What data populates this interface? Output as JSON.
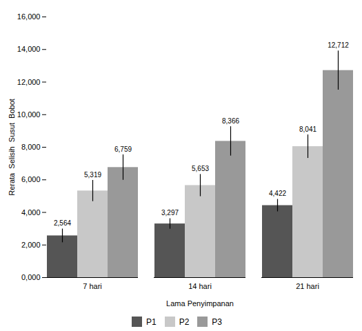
{
  "chart_data": {
    "type": "bar",
    "categories": [
      "7 hari",
      "14 hari",
      "21 hari"
    ],
    "series": [
      {
        "name": "P1",
        "color": "#555555",
        "values": [
          2564,
          3297,
          4422
        ],
        "errors": [
          420,
          320,
          380
        ],
        "value_labels": [
          "2,564",
          "3,297",
          "4,422"
        ]
      },
      {
        "name": "P2",
        "color": "#c8c8c8",
        "values": [
          5319,
          5653,
          8041
        ],
        "errors": [
          650,
          680,
          720
        ],
        "value_labels": [
          "5,319",
          "5,653",
          "8,041"
        ]
      },
      {
        "name": "P3",
        "color": "#999999",
        "values": [
          6759,
          8366,
          12712
        ],
        "errors": [
          780,
          900,
          1200
        ],
        "value_labels": [
          "6,759",
          "8,366",
          "12,712"
        ]
      }
    ],
    "xlabel": "Lama Penyimpanan",
    "ylabel": "Rerata  Selisih  Susut  Bobot",
    "ylim": [
      0,
      16000
    ],
    "yticks": [
      {
        "value": 0,
        "label": "0,000"
      },
      {
        "value": 2000,
        "label": "2,000"
      },
      {
        "value": 4000,
        "label": "4,000"
      },
      {
        "value": 6000,
        "label": "6,000"
      },
      {
        "value": 8000,
        "label": "8,000"
      },
      {
        "value": 10000,
        "label": "10,000"
      },
      {
        "value": 12000,
        "label": "12,000"
      },
      {
        "value": 14000,
        "label": "14,000"
      },
      {
        "value": 16000,
        "label": "16,000"
      }
    ],
    "grid": false,
    "legend": "bottom",
    "data_labels": true
  }
}
